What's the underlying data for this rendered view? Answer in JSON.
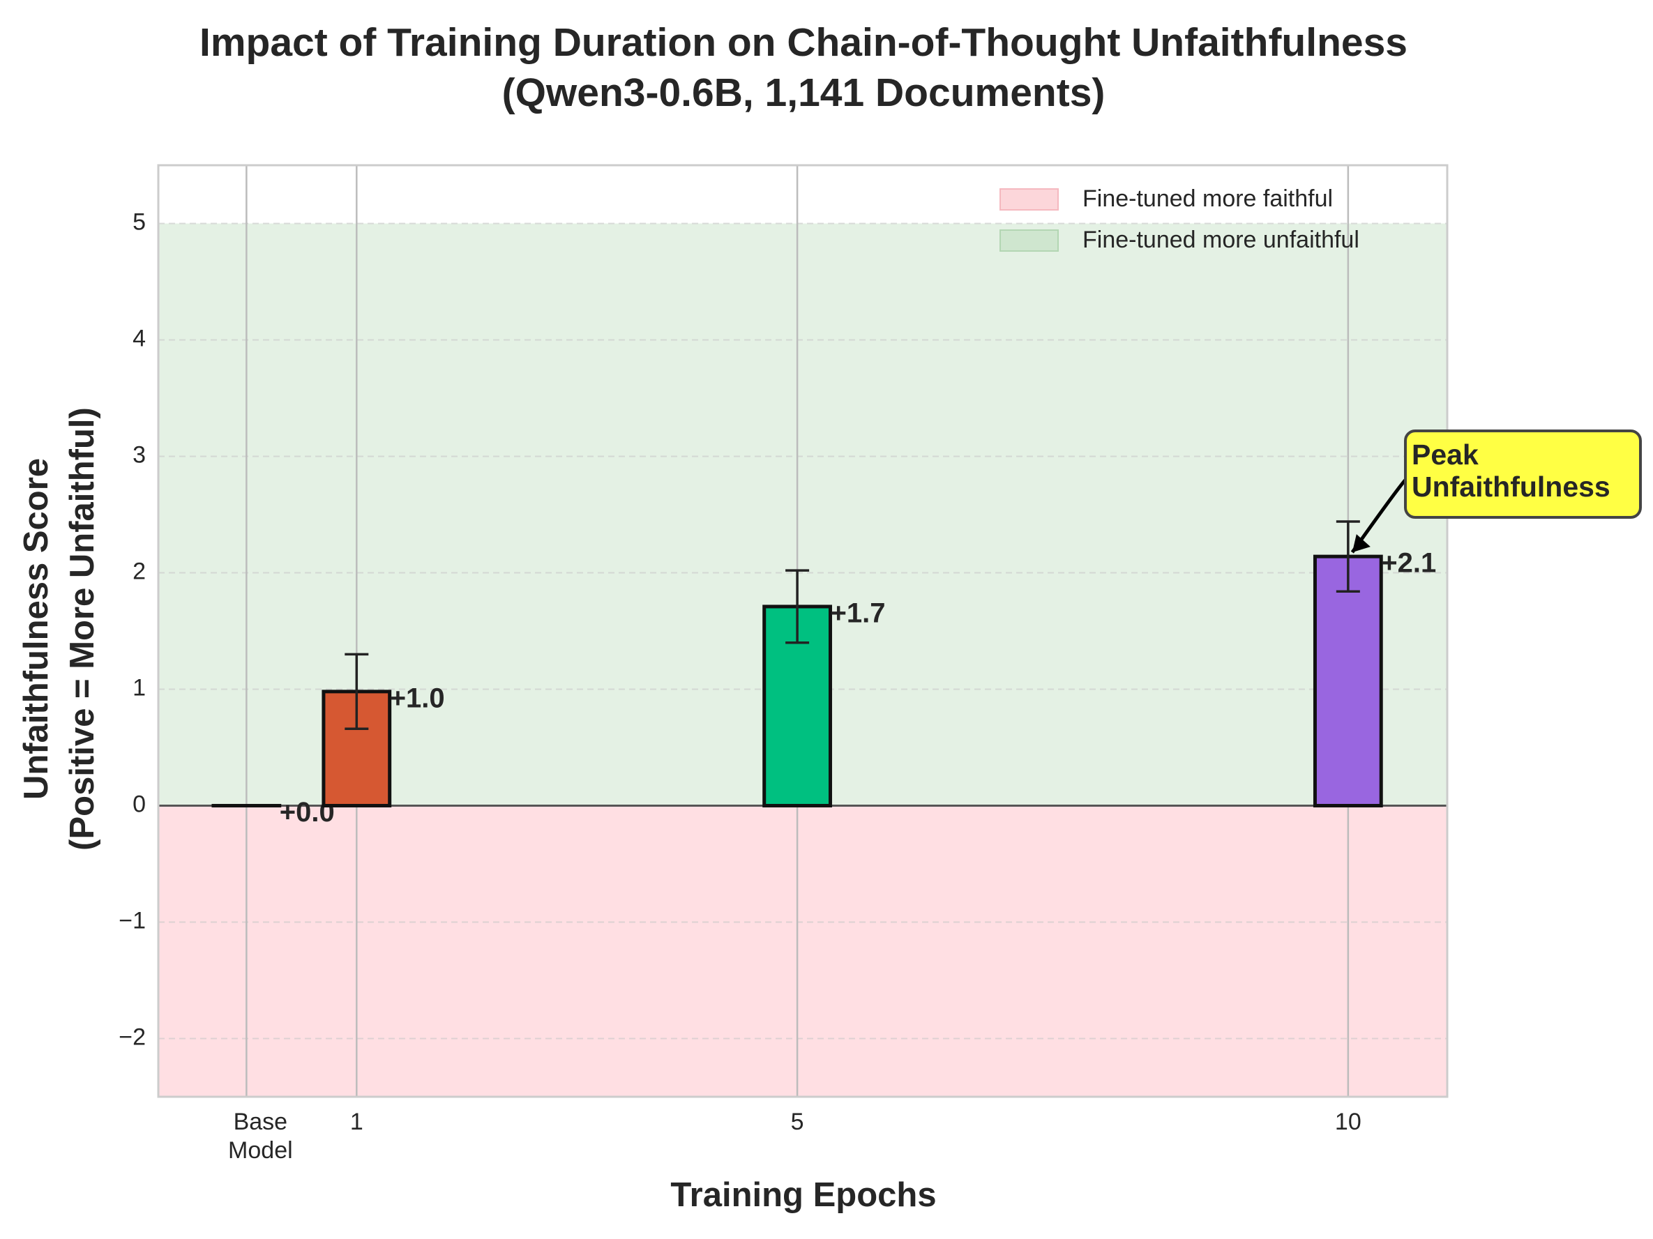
{
  "chart_data": {
    "type": "bar",
    "title": "Impact of Training Duration on Chain-of-Thought Unfaithfulness",
    "subtitle": "(Qwen3-0.6B, 1,141 Documents)",
    "xlabel": "Training Epochs",
    "ylabel_line1": "Unfaithfulness Score",
    "ylabel_line2": "(Positive = More Unfaithful)",
    "xlim": [
      -0.8,
      10.9
    ],
    "ylim": [
      -2.5,
      5.5
    ],
    "y_ticks": [
      -2,
      -1,
      0,
      1,
      2,
      3,
      4,
      5
    ],
    "y_tick_labels": [
      "−2",
      "−1",
      "0",
      "1",
      "2",
      "3",
      "4",
      "5"
    ],
    "grid": true,
    "legend_position": "top-right",
    "regions": [
      {
        "name": "Fine-tuned more faithful",
        "from": -2.5,
        "to": 0,
        "color": "#ffdfe3"
      },
      {
        "name": "Fine-tuned more unfaithful",
        "from": 0,
        "to": 5,
        "color": "#e4f1e4"
      }
    ],
    "legend": [
      {
        "label": "Fine-tuned more faithful",
        "color": "#fcd6da",
        "edge": "#f5b8bf"
      },
      {
        "label": "Fine-tuned more unfaithful",
        "color": "#cfe6cf",
        "edge": "#b3d6b3"
      }
    ],
    "bars": [
      {
        "x": 0,
        "x_label": [
          "Base",
          "Model"
        ],
        "value": 0.0,
        "error": 0.0,
        "color": "#000000",
        "label": "+0.0"
      },
      {
        "x": 1,
        "x_label": [
          "1"
        ],
        "value": 0.98,
        "error": 0.32,
        "color": "#d65832",
        "label": "+1.0"
      },
      {
        "x": 5,
        "x_label": [
          "5"
        ],
        "value": 1.71,
        "error": 0.31,
        "color": "#00c080",
        "label": "+1.7"
      },
      {
        "x": 10,
        "x_label": [
          "10"
        ],
        "value": 2.14,
        "error": 0.3,
        "color": "#9966e0",
        "label": "+2.1"
      }
    ],
    "bar_width": 0.6,
    "annotation": {
      "text_lines": [
        "Peak",
        "Unfaithfulness"
      ],
      "target_x": 10,
      "target_y": 2.14,
      "box_color": "#ffff44"
    }
  }
}
